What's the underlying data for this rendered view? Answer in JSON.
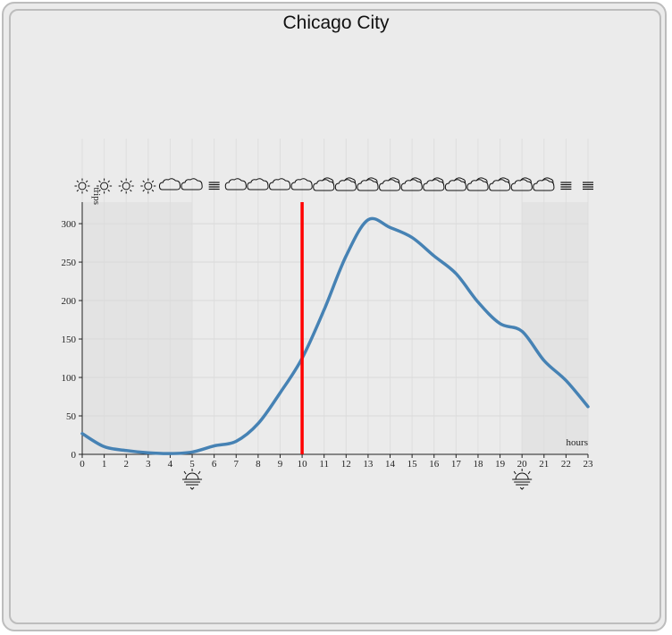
{
  "chart_data": {
    "type": "line",
    "title": "Chicago City",
    "xlabel": "hours",
    "ylabel": "trips",
    "x": [
      0,
      1,
      2,
      3,
      4,
      5,
      6,
      7,
      8,
      9,
      10,
      11,
      12,
      13,
      14,
      15,
      16,
      17,
      18,
      19,
      20,
      21,
      22,
      23
    ],
    "series": [
      {
        "values": [
          27,
          10,
          5,
          2,
          1,
          3,
          11,
          17,
          40,
          80,
          125,
          188,
          258,
          305,
          295,
          282,
          258,
          235,
          198,
          170,
          160,
          122,
          96,
          62
        ],
        "color": "#4682b4"
      }
    ],
    "xlim": [
      0,
      23
    ],
    "ylim": [
      0,
      328
    ],
    "x_ticks": [
      0,
      1,
      2,
      3,
      4,
      5,
      6,
      7,
      8,
      9,
      10,
      11,
      12,
      13,
      14,
      15,
      16,
      17,
      18,
      19,
      20,
      21,
      22,
      23
    ],
    "y_ticks": [
      0,
      50,
      100,
      150,
      200,
      250,
      300
    ],
    "grid": true,
    "current_hour_marker": {
      "hour": 10,
      "color": "#ff0000"
    },
    "night_shading": [
      {
        "from": 0,
        "to": 5
      },
      {
        "from": 20,
        "to": 23
      }
    ],
    "sunrise_hour": 5,
    "sunset_hour": 20,
    "weather_icons": [
      "sun-icon",
      "sun-icon",
      "sun-icon",
      "sun-icon",
      "cloud-icon",
      "cloud-icon",
      "fog-icon",
      "cloud-icon",
      "cloud-icon",
      "cloud-icon",
      "cloud-icon",
      "partly-cloudy-icon",
      "partly-cloudy-icon",
      "partly-cloudy-icon",
      "partly-cloudy-icon",
      "partly-cloudy-icon",
      "partly-cloudy-icon",
      "partly-cloudy-icon",
      "partly-cloudy-icon",
      "partly-cloudy-icon",
      "partly-cloudy-icon",
      "partly-cloudy-icon",
      "fog-icon",
      "fog-icon"
    ]
  }
}
